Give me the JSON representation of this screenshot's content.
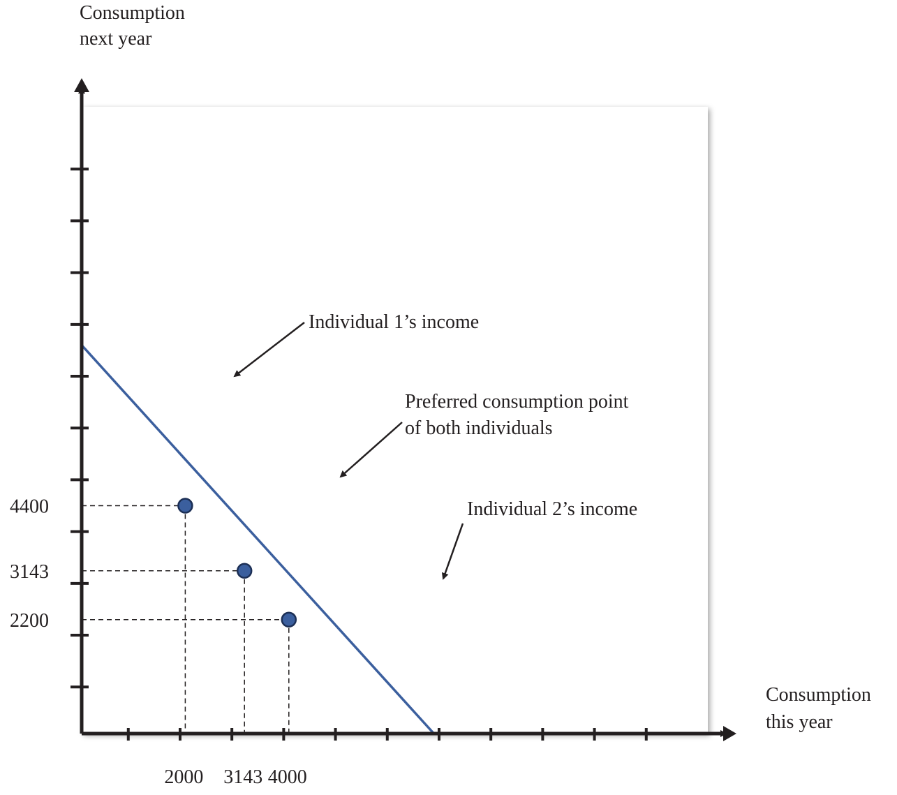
{
  "chart_data": {
    "type": "line",
    "ylabel_lines": [
      "Consumption",
      "next year"
    ],
    "xlabel_lines": [
      "Consumption",
      "this year"
    ],
    "xlim": [
      0,
      9400
    ],
    "ylim": [
      0,
      9400
    ],
    "x_tick_count": 13,
    "y_tick_count": 12,
    "x_tick_labels": [
      {
        "value": 2000,
        "label": "2000"
      },
      {
        "value": 3143,
        "label": "3143"
      },
      {
        "value": 4000,
        "label": "4000"
      }
    ],
    "y_tick_labels": [
      {
        "value": 4400,
        "label": "4400"
      },
      {
        "value": 3143,
        "label": "3143"
      },
      {
        "value": 2200,
        "label": "2200"
      }
    ],
    "series": [
      {
        "x": [
          0,
          6800
        ],
        "y": [
          7500,
          0
        ],
        "color": "#3b5f9e"
      }
    ],
    "points": [
      {
        "x": 2000,
        "y": 4400,
        "label_lines": [
          "Individual 1’s income"
        ]
      },
      {
        "x": 3143,
        "y": 3143,
        "label_lines": [
          "Preferred consumption point",
          "of both individuals"
        ]
      },
      {
        "x": 4000,
        "y": 2200,
        "label_lines": [
          "Individual 2’s income"
        ]
      }
    ],
    "grid": false,
    "colors": {
      "line": "#3b5f9e",
      "point_fill": "#3b5f9e",
      "point_stroke": "#1c2f55",
      "axis": "#231f20",
      "guide": "#231f20"
    }
  }
}
